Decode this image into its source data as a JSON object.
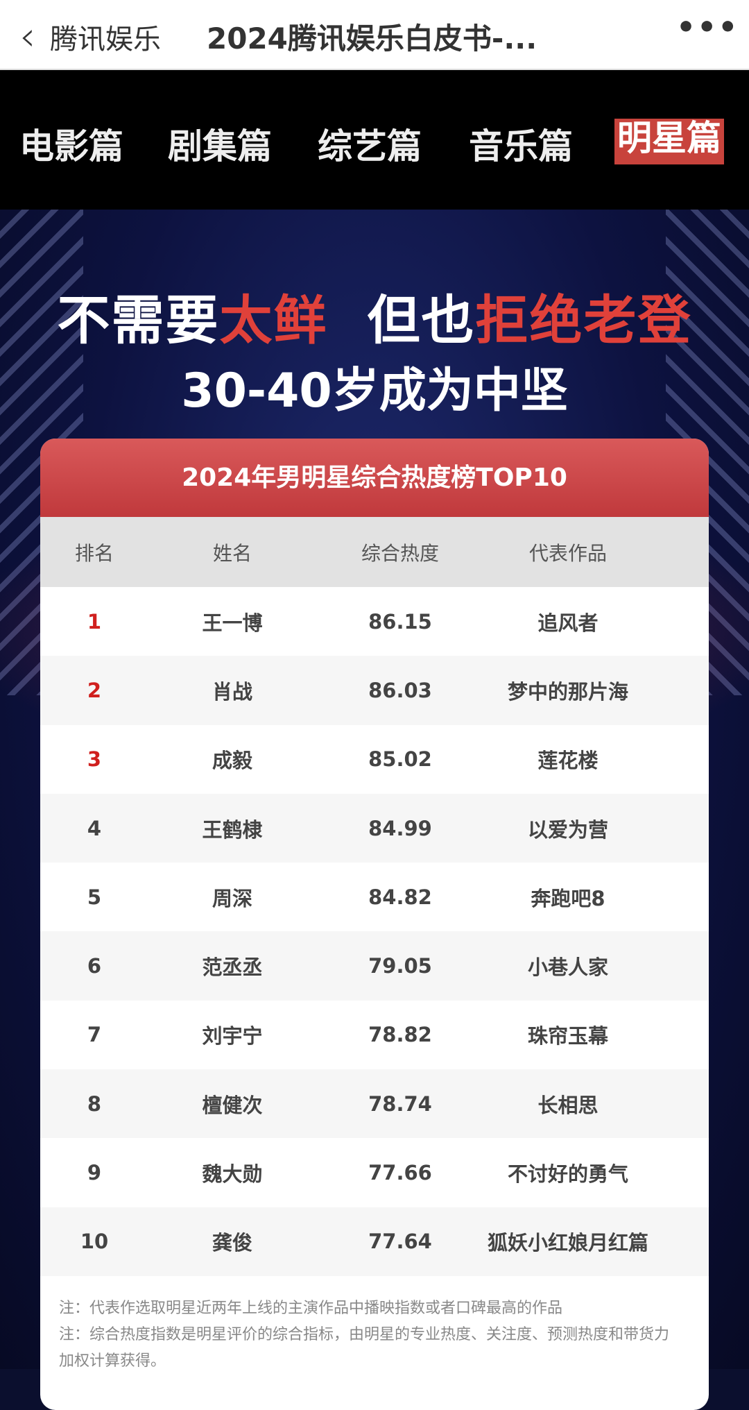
{
  "topbar": {
    "back_icon": "chevron-left-icon",
    "source": "腾讯娱乐",
    "title": "2024腾讯娱乐白皮书-...",
    "more_icon": "ellipsis-icon"
  },
  "tabs": [
    {
      "label": "电影篇"
    },
    {
      "label": "剧集篇"
    },
    {
      "label": "综艺篇"
    },
    {
      "label": "音乐篇"
    },
    {
      "label": "明星篇",
      "active": true
    }
  ],
  "headline": {
    "p1": "不需要",
    "p2": "太鲜",
    "p3": "  但也",
    "p4": "拒绝老登",
    "line2": "30-40岁成为中坚"
  },
  "table": {
    "title": "2024年男明星综合热度榜TOP10",
    "headers": [
      "排名",
      "姓名",
      "综合热度",
      "代表作品"
    ],
    "rows": [
      [
        "1",
        "王一博",
        "86.15",
        "追风者"
      ],
      [
        "2",
        "肖战",
        "86.03",
        "梦中的那片海"
      ],
      [
        "3",
        "成毅",
        "85.02",
        "莲花楼"
      ],
      [
        "4",
        "王鹤棣",
        "84.99",
        "以爱为营"
      ],
      [
        "5",
        "周深",
        "84.82",
        "奔跑吧8"
      ],
      [
        "6",
        "范丞丞",
        "79.05",
        "小巷人家"
      ],
      [
        "7",
        "刘宇宁",
        "78.82",
        "珠帘玉幕"
      ],
      [
        "8",
        "檀健次",
        "78.74",
        "长相思"
      ],
      [
        "9",
        "魏大勋",
        "77.66",
        "不讨好的勇气"
      ],
      [
        "10",
        "龚俊",
        "77.64",
        "狐妖小红娘月红篇"
      ]
    ],
    "notes": [
      "注：代表作选取明星近两年上线的主演作品中播映指数或者口碑最高的作品",
      "注：综合热度指数是明星评价的综合指标，由明星的专业热度、关注度、预测热度和带货力加权计算获得。"
    ]
  },
  "colors": {
    "accent": "#c8433c",
    "rank_top": "#d0201e",
    "banner": "#0d1240"
  }
}
